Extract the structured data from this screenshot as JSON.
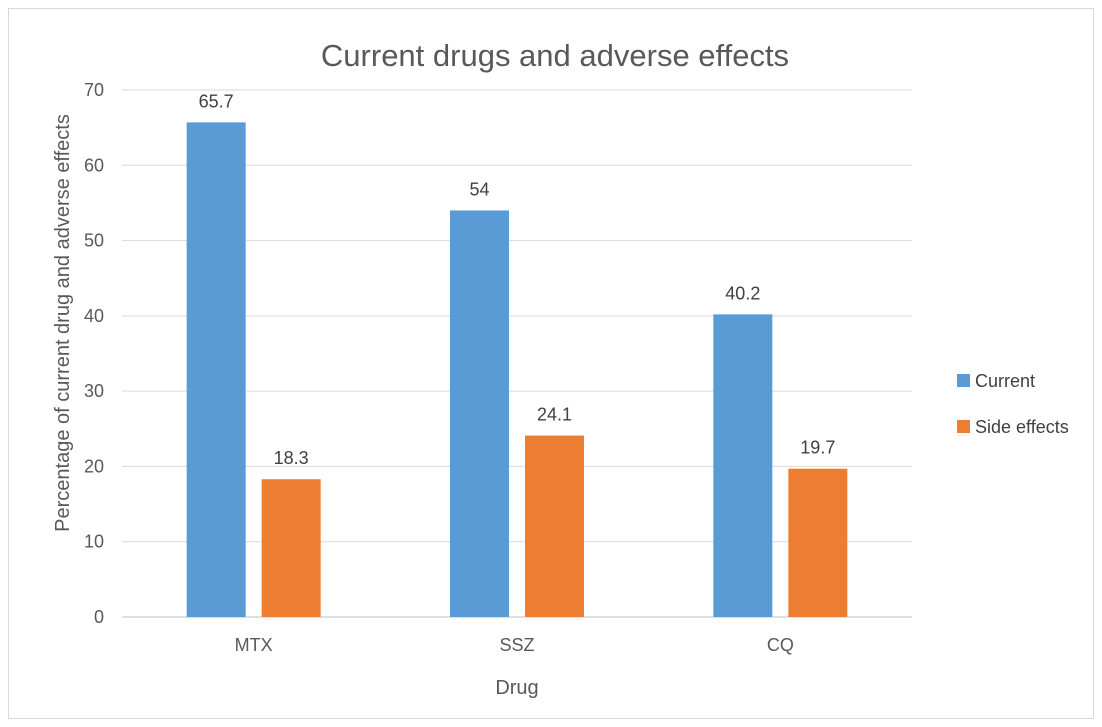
{
  "chart_data": {
    "type": "bar",
    "title": "Current drugs and adverse effects",
    "xlabel": "Drug",
    "ylabel": "Percentage of current drug and adverse effects",
    "categories": [
      "MTX",
      "SSZ",
      "CQ"
    ],
    "series": [
      {
        "name": "Current",
        "values": [
          65.7,
          54,
          40.2
        ],
        "color": "#5B9BD5"
      },
      {
        "name": "Side effects",
        "values": [
          18.3,
          24.1,
          19.7
        ],
        "color": "#ED7D31"
      }
    ],
    "ylim": [
      0,
      70
    ],
    "yticks": [
      0,
      10,
      20,
      30,
      40,
      50,
      60,
      70
    ],
    "grid": true,
    "legend_position": "right",
    "data_labels": [
      "65.7",
      "54",
      "40.2",
      "18.3",
      "24.1",
      "19.7"
    ]
  }
}
